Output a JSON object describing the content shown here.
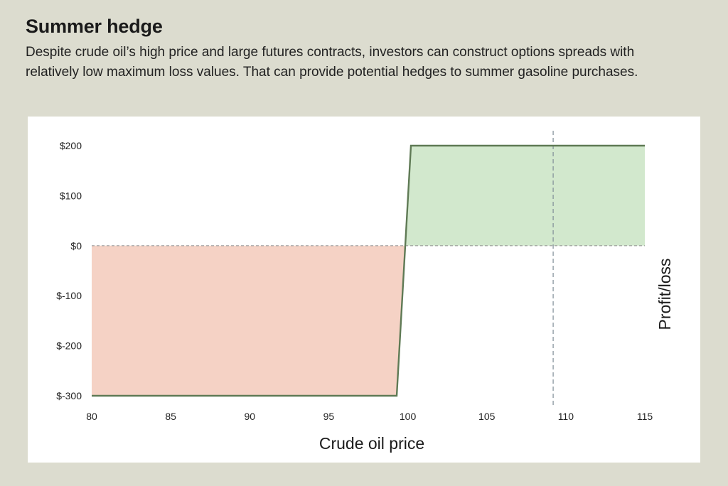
{
  "header": {
    "title": "Summer hedge",
    "subtitle": "Despite crude oil’s high price and large futures contracts, investors can construct options spreads with relatively low maximum loss values. That can provide potential hedges to summer gasoline purchases."
  },
  "colors": {
    "loss_fill": "#f5d2c5",
    "profit_fill": "#d2e8cd",
    "payoff_line": "#5f7a55",
    "zero_line": "#9a9a9a",
    "marker_line": "#7f8c96"
  },
  "chart_data": {
    "type": "area",
    "title": "Summer hedge",
    "xlabel": "Crude oil price",
    "ylabel": "Profit/loss",
    "xlim": [
      80,
      115
    ],
    "ylim": [
      -300,
      200
    ],
    "x_ticks": [
      80,
      85,
      90,
      95,
      100,
      105,
      110,
      115
    ],
    "x_tick_labels": [
      "80",
      "85",
      "90",
      "95",
      "100",
      "105",
      "110",
      "115"
    ],
    "y_ticks": [
      200,
      100,
      0,
      -100,
      -200,
      -300
    ],
    "y_tick_labels": [
      "$200",
      "$100",
      "$0",
      "$-100",
      "$-200",
      "$-300"
    ],
    "series": [
      {
        "name": "",
        "x": [
          80,
          99.3,
          100.2,
          115
        ],
        "y": [
          -300,
          -300,
          200,
          200
        ]
      }
    ],
    "breakeven_x": 99.8,
    "reference_x": 109.2,
    "grid": false,
    "legend": "none"
  }
}
